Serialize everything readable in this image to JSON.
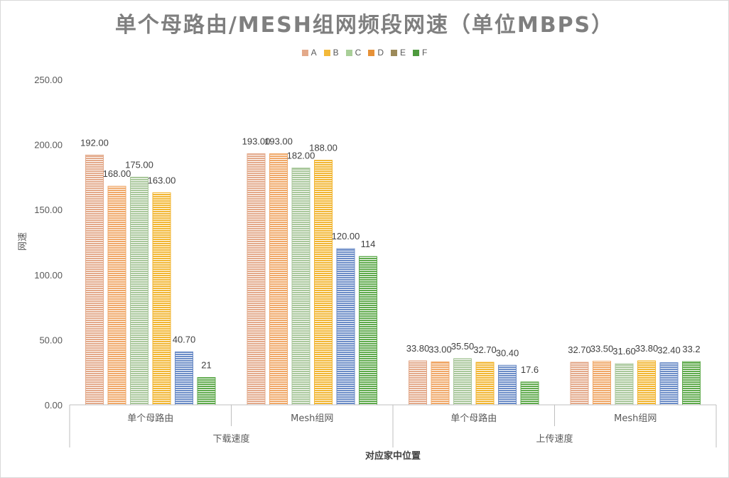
{
  "chart_data": {
    "type": "bar",
    "title": "单个母路由/MESH组网频段网速（单位MBPS）",
    "xlabel": "对应家中位置",
    "ylabel": "网速",
    "ylim": [
      0,
      250
    ],
    "yticks": [
      "0.00",
      "50.00",
      "100.00",
      "150.00",
      "200.00",
      "250.00"
    ],
    "grid": false,
    "legend_position": "top",
    "groups": [
      "下载速度",
      "上传速度"
    ],
    "categories": [
      "单个母路由",
      "Mesh组网",
      "单个母路由",
      "Mesh组网"
    ],
    "category_group": [
      0,
      0,
      1,
      1
    ],
    "series": [
      {
        "name": "A",
        "color": "#e3a98a",
        "values": [
          192,
          193,
          33.8,
          32.7
        ],
        "labels": [
          "192.00",
          "193.00",
          "33.80",
          "32.70"
        ]
      },
      {
        "name": "B",
        "color": "#f0a868",
        "values": [
          168,
          193,
          33.0,
          33.5
        ],
        "labels": [
          "168.00",
          "193.00",
          "33.00",
          "33.50"
        ]
      },
      {
        "name": "C",
        "color": "#a9c79b",
        "values": [
          175,
          182,
          35.5,
          31.6
        ],
        "labels": [
          "175.00",
          "182.00",
          "35.50",
          "31.60"
        ]
      },
      {
        "name": "D",
        "color": "#f2b632",
        "values": [
          163,
          188,
          32.7,
          33.8
        ],
        "labels": [
          "163.00",
          "188.00",
          "32.70",
          "33.80"
        ]
      },
      {
        "name": "E",
        "color": "#6b8cc7",
        "values": [
          40.7,
          120,
          30.4,
          32.4
        ],
        "labels": [
          "40.70",
          "120.00",
          "30.40",
          "32.40"
        ]
      },
      {
        "name": "F",
        "color": "#5faa4c",
        "values": [
          21,
          114,
          17.6,
          33.2
        ],
        "labels": [
          "21",
          "114",
          "17.6",
          "33.2"
        ]
      }
    ]
  },
  "legend_colors": {
    "A": "#e3a98a",
    "B": "#f3b93a",
    "C": "#a9cf98",
    "D": "#e69138",
    "E": "#9c8a5a",
    "F": "#4e9a3e"
  }
}
